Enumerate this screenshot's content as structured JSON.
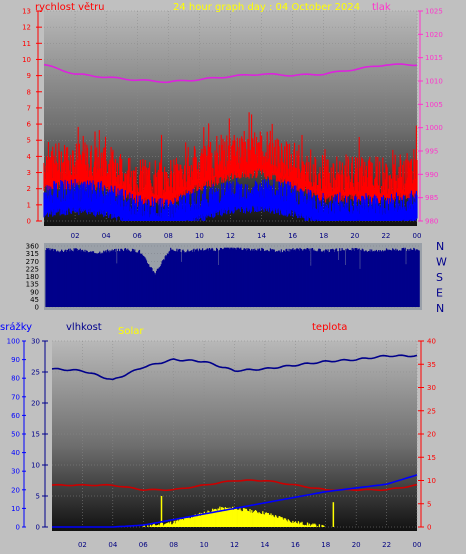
{
  "header": {
    "title": "24 hour graph day : 04 October 2024",
    "wind_label": "rychlost větru",
    "pressure_label": "tlak"
  },
  "colors": {
    "background": "#c0c0c0",
    "wind_left_axis": "#ff0000",
    "pressure_axis": "#ff33cc",
    "pressure_line": "#dd22dd",
    "gust": "#ff0000",
    "wind_avg": "#0000ff",
    "direction": "#00008b",
    "title": "#ffff00",
    "rain": "#0000ff",
    "humidity": "#00008b",
    "solar": "#ffff00",
    "temperature": "#ff0000",
    "temperature_line": "#cc0000"
  },
  "direction_panel": {
    "compass": [
      "N",
      "W",
      "S",
      "E",
      "N"
    ]
  },
  "bottom_panel": {
    "rain_label": "srážky",
    "humidity_label": "vlhkost",
    "solar_label": "Solar",
    "temp_label": "teplota"
  },
  "chart_data": [
    {
      "id": "wind_pressure",
      "type": "line",
      "x_ticks": [
        "02",
        "04",
        "06",
        "08",
        "10",
        "12",
        "14",
        "16",
        "18",
        "20",
        "22",
        "00"
      ],
      "y_left": {
        "label": "rychlost větru",
        "ylim": [
          0,
          13
        ],
        "ticks": [
          0,
          1,
          2,
          3,
          4,
          5,
          6,
          7,
          8,
          9,
          10,
          11,
          12,
          13
        ]
      },
      "y_right": {
        "label": "tlak",
        "ylim": [
          980,
          1025
        ],
        "ticks": [
          980,
          985,
          990,
          995,
          1000,
          1005,
          1010,
          1015,
          1020,
          1025
        ]
      },
      "series": [
        {
          "name": "tlak",
          "axis": "right",
          "x": [
            0,
            2,
            4,
            6,
            8,
            10,
            12,
            14,
            16,
            18,
            20,
            22,
            24
          ],
          "values": [
            1013.5,
            1011.5,
            1010.8,
            1010.2,
            1009.8,
            1010.3,
            1011,
            1011.5,
            1011.2,
            1011.5,
            1012.5,
            1013.5,
            1013.5
          ]
        },
        {
          "axis": "left",
          "x": [
            0,
            2,
            4,
            6,
            8,
            10,
            12,
            14,
            16,
            18,
            20,
            22,
            24
          ],
          "values": [
            3.5,
            3.7,
            3.5,
            2.6,
            2.5,
            3.5,
            4.2,
            4.4,
            3.6,
            2.8,
            2.8,
            2.7,
            3.0
          ]
        },
        {
          "axis": "left",
          "x": [
            0,
            2,
            4,
            6,
            8,
            10,
            12,
            14,
            16,
            18,
            20,
            22,
            24
          ],
          "values": [
            1.6,
            1.8,
            1.6,
            0.8,
            0.6,
            1.3,
            1.8,
            1.9,
            1.6,
            0.9,
            1.0,
            0.9,
            1.1
          ]
        }
      ],
      "grid": true
    },
    {
      "id": "direction",
      "type": "bar",
      "x_ticks": [],
      "y": {
        "ylim": [
          0,
          360
        ],
        "ticks": [
          0,
          45,
          90,
          135,
          180,
          225,
          270,
          315,
          360
        ]
      },
      "x": [
        0,
        1,
        2,
        3,
        4,
        5,
        6,
        7,
        8,
        9,
        10,
        11,
        12,
        13,
        14,
        15,
        16,
        17,
        18,
        19,
        20,
        21,
        22,
        23,
        24
      ],
      "values": [
        340,
        330,
        340,
        320,
        330,
        340,
        330,
        200,
        340,
        330,
        340,
        340,
        350,
        340,
        340,
        330,
        340,
        340,
        330,
        340,
        340,
        330,
        340,
        340,
        340
      ]
    },
    {
      "id": "rain_humidity_solar_temp",
      "type": "line",
      "x_ticks": [
        "02",
        "04",
        "06",
        "08",
        "10",
        "12",
        "14",
        "16",
        "18",
        "20",
        "22",
        "00"
      ],
      "y_rain": {
        "label": "srážky",
        "ylim": [
          0,
          100
        ],
        "ticks": [
          0,
          10,
          20,
          30,
          40,
          50,
          60,
          70,
          80,
          90,
          100
        ]
      },
      "y_humidity": {
        "label": "vlhkost",
        "ylim": [
          0,
          30
        ],
        "ticks": [
          0,
          5,
          10,
          15,
          20,
          25,
          30
        ]
      },
      "y_temp": {
        "label": "teplota",
        "ylim": [
          0,
          40
        ],
        "ticks": [
          0,
          5,
          10,
          15,
          20,
          25,
          30,
          35,
          40
        ]
      },
      "series": [
        {
          "axis": "rain",
          "x": [
            0,
            2,
            4,
            6,
            8,
            10,
            12,
            14,
            16,
            18,
            20,
            22,
            24
          ],
          "values": [
            85,
            84,
            79,
            86,
            90,
            89,
            84,
            85,
            87,
            89,
            90,
            92,
            92
          ]
        },
        {
          "axis": "temp",
          "x": [
            0,
            2,
            4,
            6,
            8,
            10,
            12,
            14,
            16,
            18,
            20,
            22,
            24
          ],
          "values": [
            9,
            9,
            9,
            8,
            8,
            9,
            10,
            10,
            9,
            8,
            8,
            8,
            9
          ]
        },
        {
          "axis": "rain",
          "x": [
            0,
            2,
            4,
            6,
            8,
            10,
            12,
            14,
            16,
            18,
            20,
            22,
            24
          ],
          "values": [
            0,
            0,
            0,
            1,
            4,
            7,
            10,
            13,
            16,
            19,
            21,
            23,
            28
          ]
        },
        {
          "axis": "temp",
          "x": [
            6,
            8,
            10,
            11,
            12,
            13,
            14,
            16,
            18
          ],
          "values": [
            0,
            1,
            3,
            4,
            4,
            3.5,
            3,
            1,
            0
          ]
        }
      ],
      "grid": true
    }
  ]
}
